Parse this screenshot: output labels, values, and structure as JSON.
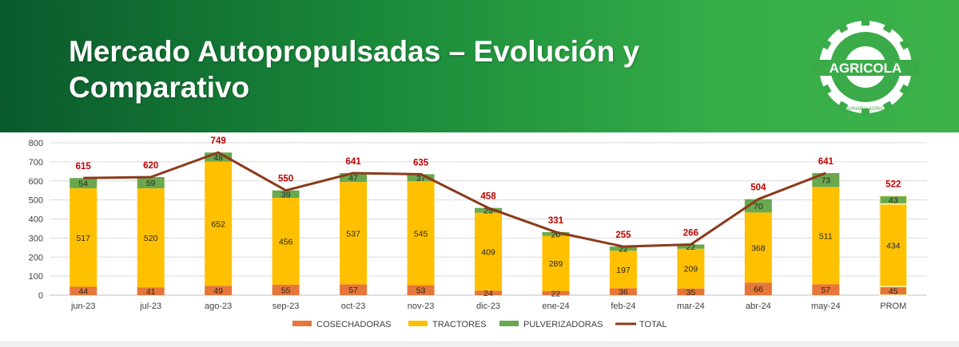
{
  "header": {
    "title": "Mercado Autopropulsadas – Evolución y Comparativo",
    "logo_text": "AGRICOLA",
    "logo_subtext": "MAQUINARIA AGRICOLA"
  },
  "colors": {
    "banner_dark": "#0a5a2c",
    "banner_light": "#3db24a",
    "cosechadoras": "#e6763a",
    "tractores": "#ffc000",
    "pulverizadoras": "#6aa84f",
    "total_line": "#8b3a1a",
    "total_label": "#c00000"
  },
  "chart_data": {
    "type": "bar",
    "stacked": true,
    "categories": [
      "jun-23",
      "jul-23",
      "ago-23",
      "sep-23",
      "oct-23",
      "nov-23",
      "dic-23",
      "ene-24",
      "feb-24",
      "mar-24",
      "abr-24",
      "may-24",
      "PROM"
    ],
    "series": [
      {
        "name": "COSECHADORAS",
        "values": [
          44,
          41,
          49,
          55,
          57,
          53,
          24,
          22,
          36,
          35,
          66,
          57,
          45
        ]
      },
      {
        "name": "TRACTORES",
        "values": [
          517,
          520,
          652,
          456,
          537,
          545,
          409,
          289,
          197,
          209,
          368,
          511,
          434
        ]
      },
      {
        "name": "PULVERIZADORAS",
        "values": [
          54,
          59,
          48,
          39,
          47,
          37,
          25,
          20,
          22,
          22,
          70,
          73,
          43
        ]
      }
    ],
    "total": {
      "name": "TOTAL",
      "values": [
        615,
        620,
        749,
        550,
        641,
        635,
        458,
        331,
        255,
        266,
        504,
        641,
        522
      ]
    },
    "line_skips_last_category": true,
    "ylim": [
      0,
      800
    ],
    "yticks": [
      0,
      100,
      200,
      300,
      400,
      500,
      600,
      700,
      800
    ],
    "grid": true,
    "legend_position": "bottom",
    "title": "",
    "xlabel": "",
    "ylabel": ""
  }
}
